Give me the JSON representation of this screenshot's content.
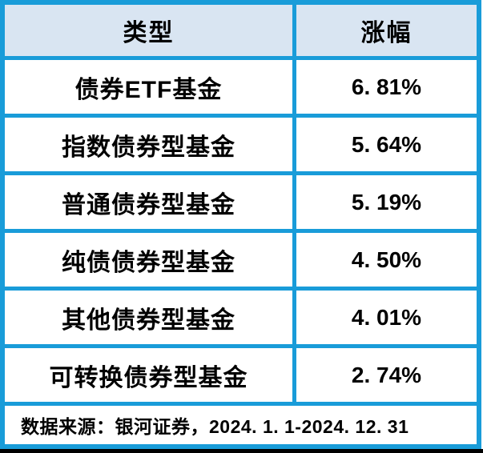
{
  "table": {
    "header": {
      "type_label": "类型",
      "change_label": "涨幅"
    },
    "rows": [
      {
        "type": "债券ETF基金",
        "change": "6. 81%"
      },
      {
        "type": "指数债券型基金",
        "change": "5. 64%"
      },
      {
        "type": "普通债券型基金",
        "change": "5. 19%"
      },
      {
        "type": "纯债债券型基金",
        "change": "4. 50%"
      },
      {
        "type": "其他债券型基金",
        "change": "4. 01%"
      },
      {
        "type": "可转换债券型基金",
        "change": "2. 74%"
      }
    ],
    "footer_note": "数据来源：银河证券，2024. 1. 1-2024. 12. 31"
  },
  "colors": {
    "border_blue": "#199CD9",
    "header_bg": "#D9E5F2",
    "cell_bg": "#FFFFFF",
    "text": "#000000",
    "bottom_bar": "#000000"
  },
  "chart_data": {
    "type": "table",
    "columns": [
      "类型",
      "涨幅"
    ],
    "rows": [
      [
        "债券ETF基金",
        "6.81%"
      ],
      [
        "指数债券型基金",
        "5.64%"
      ],
      [
        "普通债券型基金",
        "5.19%"
      ],
      [
        "纯债债券型基金",
        "4.50%"
      ],
      [
        "其他债券型基金",
        "4.01%"
      ],
      [
        "可转换债券型基金",
        "2.74%"
      ]
    ],
    "values_numeric_percent": [
      6.81,
      5.64,
      5.19,
      4.5,
      4.01,
      2.74
    ],
    "source_note": "数据来源：银河证券，2024.1.1-2024.12.31"
  }
}
